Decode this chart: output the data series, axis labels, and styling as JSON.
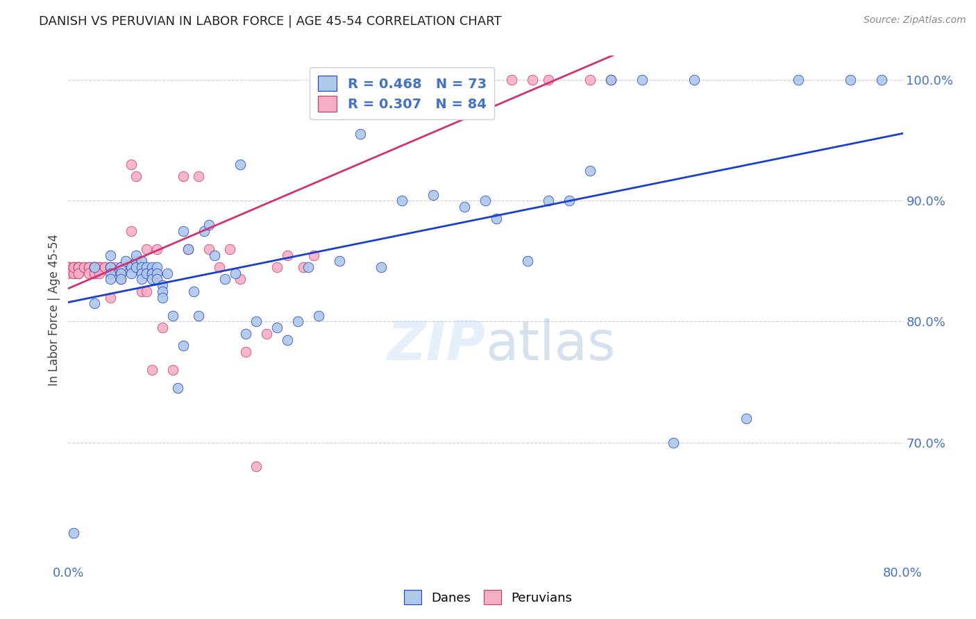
{
  "title": "DANISH VS PERUVIAN IN LABOR FORCE | AGE 45-54 CORRELATION CHART",
  "source": "Source: ZipAtlas.com",
  "ylabel": "In Labor Force | Age 45-54",
  "xlim": [
    0.0,
    0.8
  ],
  "ylim": [
    0.6,
    1.02
  ],
  "yticks": [
    0.7,
    0.8,
    0.9,
    1.0
  ],
  "ytick_labels": [
    "70.0%",
    "80.0%",
    "90.0%",
    "100.0%"
  ],
  "xtick_labels": [
    "0.0%",
    "80.0%"
  ],
  "danes_color": "#adc8e8",
  "peruvians_color": "#f4afc5",
  "trendline_danes_color": "#1a3fcc",
  "trendline_peruvians_color": "#d43070",
  "danes_R": 0.468,
  "danes_N": 73,
  "peruvians_R": 0.307,
  "peruvians_N": 84,
  "danes_x": [
    0.005,
    0.025,
    0.025,
    0.04,
    0.04,
    0.04,
    0.04,
    0.05,
    0.05,
    0.05,
    0.055,
    0.06,
    0.06,
    0.065,
    0.065,
    0.065,
    0.07,
    0.07,
    0.07,
    0.07,
    0.075,
    0.075,
    0.08,
    0.08,
    0.08,
    0.08,
    0.085,
    0.085,
    0.085,
    0.09,
    0.09,
    0.09,
    0.095,
    0.1,
    0.105,
    0.11,
    0.11,
    0.115,
    0.12,
    0.125,
    0.13,
    0.135,
    0.14,
    0.15,
    0.16,
    0.165,
    0.17,
    0.18,
    0.2,
    0.21,
    0.22,
    0.23,
    0.24,
    0.26,
    0.28,
    0.3,
    0.32,
    0.35,
    0.38,
    0.4,
    0.41,
    0.44,
    0.46,
    0.48,
    0.5,
    0.52,
    0.55,
    0.58,
    0.6,
    0.65,
    0.7,
    0.75,
    0.78
  ],
  "danes_y": [
    0.625,
    0.845,
    0.815,
    0.855,
    0.845,
    0.84,
    0.835,
    0.845,
    0.84,
    0.835,
    0.85,
    0.845,
    0.84,
    0.85,
    0.855,
    0.845,
    0.85,
    0.845,
    0.84,
    0.835,
    0.845,
    0.84,
    0.845,
    0.84,
    0.84,
    0.835,
    0.845,
    0.84,
    0.835,
    0.83,
    0.825,
    0.82,
    0.84,
    0.805,
    0.745,
    0.875,
    0.78,
    0.86,
    0.825,
    0.805,
    0.875,
    0.88,
    0.855,
    0.835,
    0.84,
    0.93,
    0.79,
    0.8,
    0.795,
    0.785,
    0.8,
    0.845,
    0.805,
    0.85,
    0.955,
    0.845,
    0.9,
    0.905,
    0.895,
    0.9,
    0.885,
    0.85,
    0.9,
    0.9,
    0.925,
    1.0,
    1.0,
    0.7,
    1.0,
    0.72,
    1.0,
    1.0,
    1.0
  ],
  "peruvians_x": [
    0.0,
    0.0,
    0.0,
    0.0,
    0.005,
    0.005,
    0.005,
    0.005,
    0.005,
    0.01,
    0.01,
    0.01,
    0.01,
    0.01,
    0.01,
    0.01,
    0.015,
    0.015,
    0.02,
    0.02,
    0.02,
    0.02,
    0.025,
    0.025,
    0.025,
    0.025,
    0.025,
    0.025,
    0.03,
    0.03,
    0.03,
    0.03,
    0.03,
    0.035,
    0.035,
    0.04,
    0.04,
    0.04,
    0.04,
    0.04,
    0.045,
    0.05,
    0.05,
    0.05,
    0.055,
    0.06,
    0.06,
    0.065,
    0.065,
    0.07,
    0.075,
    0.075,
    0.08,
    0.085,
    0.09,
    0.1,
    0.11,
    0.115,
    0.125,
    0.135,
    0.145,
    0.155,
    0.165,
    0.17,
    0.18,
    0.19,
    0.2,
    0.21,
    0.225,
    0.235,
    0.245,
    0.26,
    0.27,
    0.275,
    0.29,
    0.31,
    0.33,
    0.36,
    0.39,
    0.425,
    0.445,
    0.46,
    0.5,
    0.52
  ],
  "peruvians_y": [
    0.845,
    0.845,
    0.845,
    0.84,
    0.845,
    0.845,
    0.84,
    0.84,
    0.845,
    0.845,
    0.845,
    0.84,
    0.845,
    0.845,
    0.845,
    0.84,
    0.845,
    0.845,
    0.845,
    0.845,
    0.845,
    0.84,
    0.845,
    0.845,
    0.845,
    0.845,
    0.84,
    0.84,
    0.845,
    0.845,
    0.845,
    0.845,
    0.84,
    0.845,
    0.845,
    0.82,
    0.845,
    0.845,
    0.84,
    0.845,
    0.845,
    0.835,
    0.845,
    0.84,
    0.845,
    0.93,
    0.875,
    0.845,
    0.92,
    0.825,
    0.825,
    0.86,
    0.76,
    0.86,
    0.795,
    0.76,
    0.92,
    0.86,
    0.92,
    0.86,
    0.845,
    0.86,
    0.835,
    0.775,
    0.68,
    0.79,
    0.845,
    0.855,
    0.845,
    0.855,
    1.0,
    1.0,
    1.0,
    1.0,
    1.0,
    1.0,
    1.0,
    1.0,
    1.0,
    1.0,
    1.0,
    1.0,
    1.0,
    1.0
  ]
}
